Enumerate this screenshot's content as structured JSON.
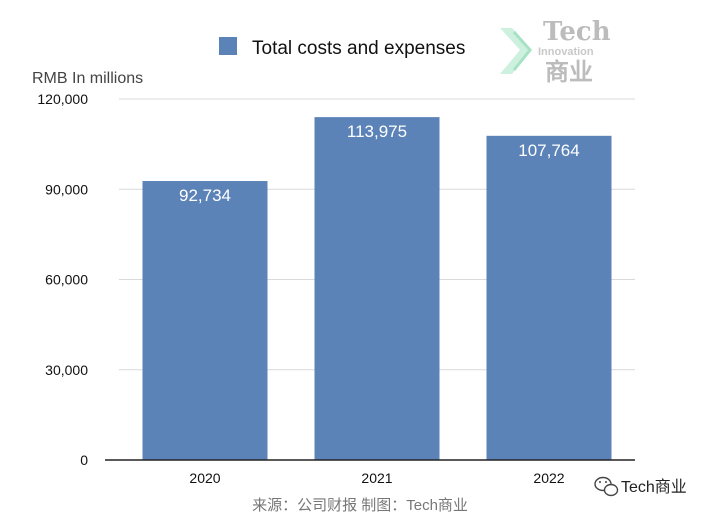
{
  "chart_data": {
    "type": "bar",
    "categories": [
      "2020",
      "2021",
      "2022"
    ],
    "series": [
      {
        "name": "Total costs and expenses",
        "values": [
          92734,
          113975,
          107764
        ]
      }
    ],
    "data_labels": [
      "92,734",
      "113,975",
      "107,764"
    ],
    "ylabel": "RMB In millions",
    "xlabel": "",
    "ylim": [
      0,
      120000
    ],
    "yticks": [
      0,
      30000,
      60000,
      90000,
      120000
    ],
    "ytick_labels": [
      "0",
      "30,000",
      "60,000",
      "90,000",
      "120,000"
    ],
    "grid": true,
    "legend_position": "top-center",
    "colors": {
      "bar": "#5b83b8",
      "grid": "#d9d9d9",
      "axis": "#222222"
    }
  },
  "source_text": "来源：公司财报 制图：Tech商业",
  "watermark": {
    "line1": "Tech",
    "line2": "Innovation",
    "line3": "商业"
  },
  "wechat_brand": "Tech商业",
  "icons": {
    "wechat": "wechat-icon",
    "logo_mark": "logo-chevron-icon"
  }
}
